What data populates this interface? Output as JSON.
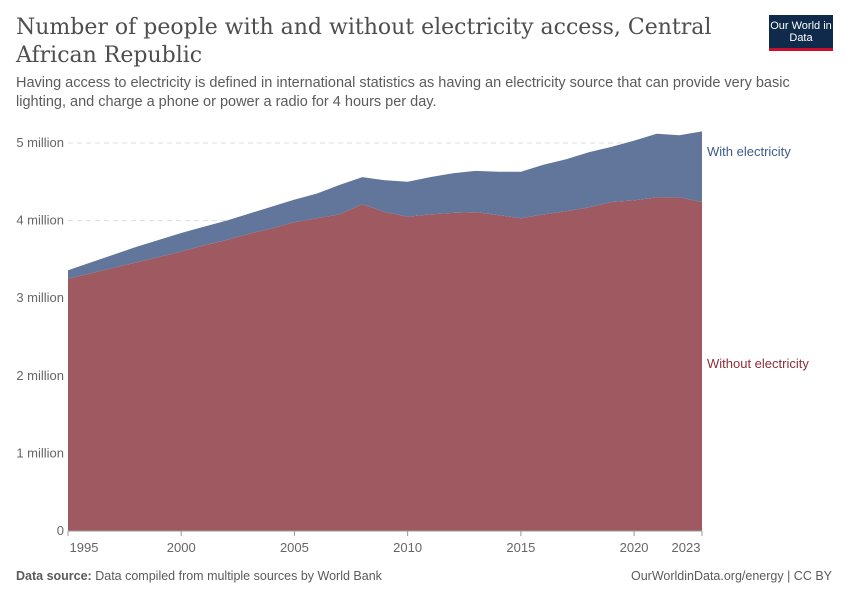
{
  "title": "Number of people with and without electricity access, Central African Republic",
  "subtitle": "Having access to electricity is defined in international statistics as having an electricity source that can provide very basic lighting, and charge a phone or power a radio for 4 hours per day.",
  "logo": "Our World in Data",
  "footer": {
    "source_label": "Data source:",
    "source": "Data compiled from multiple sources by World Bank",
    "license": "OurWorldinData.org/energy | CC BY"
  },
  "chart_data": {
    "type": "area",
    "stacked": true,
    "x": [
      1995,
      1996,
      1997,
      1998,
      1999,
      2000,
      2001,
      2002,
      2003,
      2004,
      2005,
      2006,
      2007,
      2008,
      2009,
      2010,
      2011,
      2012,
      2013,
      2014,
      2015,
      2016,
      2017,
      2018,
      2019,
      2020,
      2021,
      2022,
      2023
    ],
    "series": [
      {
        "name": "Without electricity",
        "color": "#9e5a60",
        "values": [
          3.25,
          3.32,
          3.39,
          3.46,
          3.53,
          3.6,
          3.68,
          3.75,
          3.83,
          3.9,
          3.98,
          4.03,
          4.08,
          4.21,
          4.11,
          4.05,
          4.08,
          4.1,
          4.11,
          4.07,
          4.03,
          4.08,
          4.12,
          4.17,
          4.24,
          4.26,
          4.3,
          4.3,
          4.24
        ]
      },
      {
        "name": "With electricity",
        "color": "#61769a",
        "values": [
          0.11,
          0.14,
          0.17,
          0.2,
          0.22,
          0.24,
          0.24,
          0.25,
          0.26,
          0.28,
          0.29,
          0.32,
          0.38,
          0.35,
          0.41,
          0.45,
          0.48,
          0.51,
          0.53,
          0.56,
          0.6,
          0.64,
          0.67,
          0.71,
          0.71,
          0.77,
          0.82,
          0.8,
          0.91
        ]
      }
    ],
    "unit": "million",
    "ylim": [
      0,
      5
    ],
    "y_ticks": [
      "0",
      "1 million",
      "2 million",
      "3 million",
      "4 million",
      "5 million"
    ],
    "y_tick_values": [
      0,
      1,
      2,
      3,
      4,
      5
    ],
    "x_ticks": [
      "1995",
      "2000",
      "2005",
      "2010",
      "2015",
      "2020",
      "2023"
    ],
    "grid": "horizontal dashed",
    "legend": "right, inline labels"
  }
}
